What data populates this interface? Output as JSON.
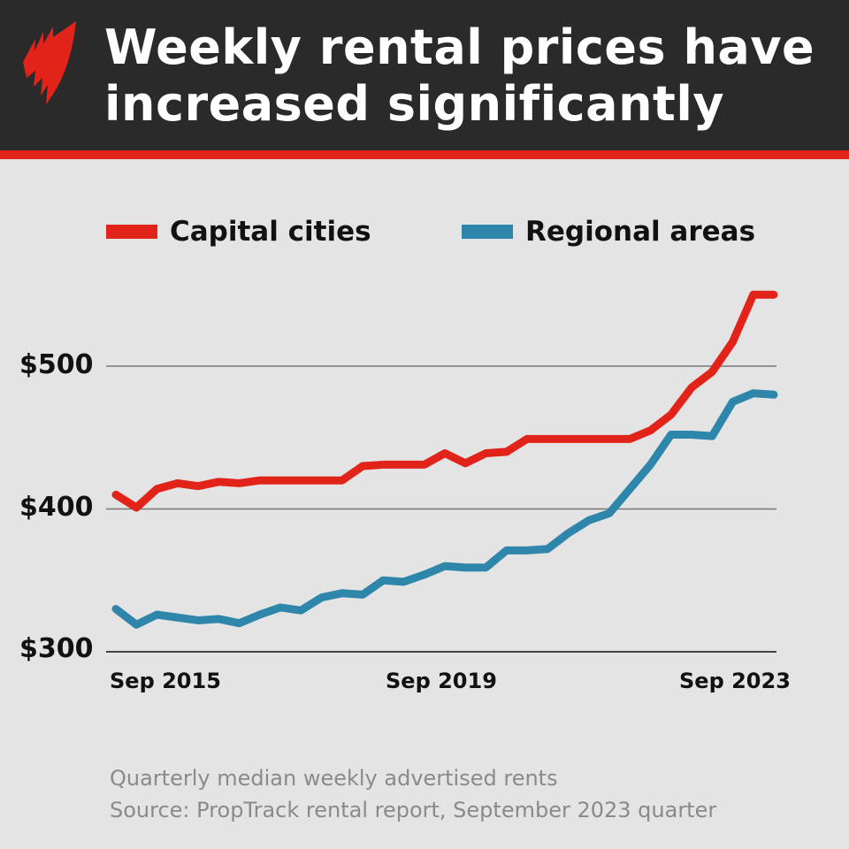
{
  "header": {
    "title_lines": [
      "Weekly rental prices have",
      "increased significantly"
    ],
    "logo": "sbs-logo"
  },
  "colors": {
    "header_bg": "#2a2a2b",
    "accent": "#e2231a",
    "capital": "#e2231a",
    "regional": "#2f86ab",
    "background": "#e4e4e4"
  },
  "footer": {
    "note": "Quarterly median weekly advertised rents",
    "source": "Source: PropTrack rental report, September 2023 quarter"
  },
  "chart_data": {
    "type": "line",
    "title": "Weekly rental prices have increased significantly",
    "xlabel": "",
    "ylabel": "",
    "x_start": "Sep 2015",
    "x_end": "Sep 2023",
    "x_frequency": "quarterly",
    "x_ticks": [
      "Sep 2015",
      "Sep 2019",
      "Sep 2023"
    ],
    "y_ticks": [
      300,
      400,
      500
    ],
    "y_tick_labels": [
      "$300",
      "$400",
      "$500"
    ],
    "ylim": [
      300,
      560
    ],
    "grid": "horizontal",
    "legend_position": "top",
    "series": [
      {
        "name": "Capital cities",
        "color": "#e2231a",
        "values": [
          410,
          401,
          414,
          418,
          416,
          419,
          418,
          420,
          420,
          420,
          420,
          420,
          430,
          431,
          431,
          431,
          439,
          432,
          439,
          440,
          449,
          449,
          449,
          449,
          449,
          449,
          455,
          466,
          485,
          496,
          517,
          550,
          550
        ]
      },
      {
        "name": "Regional areas",
        "color": "#2f86ab",
        "values": [
          330,
          319,
          326,
          324,
          322,
          323,
          320,
          326,
          331,
          329,
          338,
          341,
          340,
          350,
          349,
          354,
          360,
          359,
          359,
          371,
          371,
          372,
          383,
          392,
          397,
          414,
          431,
          452,
          452,
          451,
          475,
          481,
          480
        ]
      }
    ]
  }
}
